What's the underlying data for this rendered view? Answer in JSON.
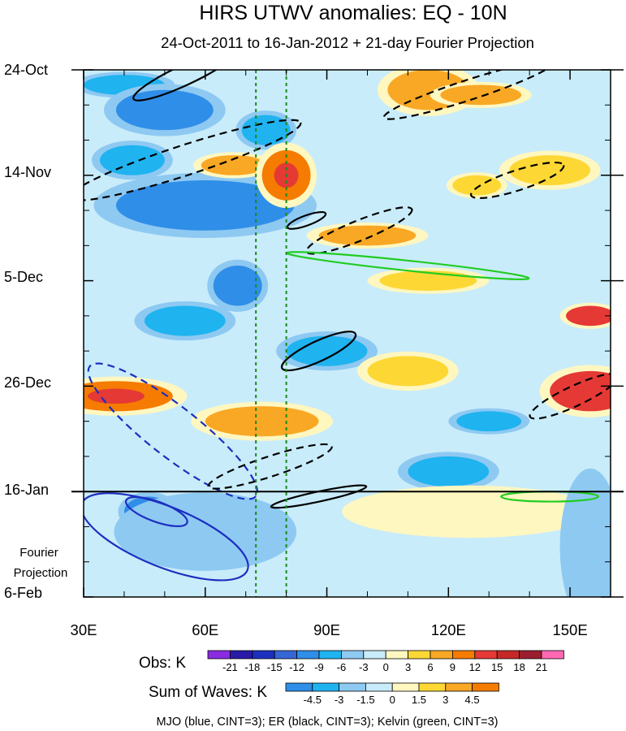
{
  "chart_data": {
    "type": "heatmap",
    "title": "HIRS UTWV anomalies: EQ - 10N",
    "subtitle": "24-Oct-2011 to 16-Jan-2012 + 21-day Fourier Projection",
    "x_ticks": [
      {
        "value": 30,
        "label": "30E"
      },
      {
        "value": 60,
        "label": "60E"
      },
      {
        "value": 90,
        "label": "90E"
      },
      {
        "value": 120,
        "label": "120E"
      },
      {
        "value": 150,
        "label": "150E"
      }
    ],
    "xlim": [
      30,
      160
    ],
    "y_ticks": [
      {
        "value": 0,
        "label": "24-Oct"
      },
      {
        "value": 21,
        "label": "14-Nov"
      },
      {
        "value": 42,
        "label": "5-Dec"
      },
      {
        "value": 63,
        "label": "26-Dec"
      },
      {
        "value": 84,
        "label": "16-Jan"
      },
      {
        "value": 105,
        "label": "6-Feb"
      }
    ],
    "ylim_days": [
      0,
      105
    ],
    "projection_start_day": 84,
    "projection_label_line1": "Fourier",
    "projection_label_line2": "Projection",
    "reference_lines_lon": [
      72.5,
      80
    ],
    "obs_legend": {
      "title": "Obs: K",
      "levels": [
        "-21",
        "-18",
        "-15",
        "-12",
        "-9",
        "-6",
        "-3",
        "0",
        "3",
        "6",
        "9",
        "12",
        "15",
        "18",
        "21"
      ],
      "colors": [
        "#8a2be2",
        "#2a1aa8",
        "#1c2fc0",
        "#3566d6",
        "#2f8ee8",
        "#1fb3f0",
        "#8ec9f2",
        "#c9ecfa",
        "#fff7c0",
        "#fdd835",
        "#f9a825",
        "#f57c00",
        "#e53935",
        "#c62828",
        "#9c1e2e",
        "#ff69b4"
      ]
    },
    "waves_legend": {
      "title": "Sum of Waves: K",
      "levels": [
        "-4.5",
        "-3",
        "-1.5",
        "0",
        "1.5",
        "3",
        "4.5"
      ],
      "colors": [
        "#2f8ee8",
        "#1fb3f0",
        "#8ec9f2",
        "#c9ecfa",
        "#fff7c0",
        "#fdd835",
        "#f9a825",
        "#f57c00"
      ]
    },
    "footer": "MJO (blue, CINT=3); ER (black, CINT=3); Kelvin (green, CINT=3)",
    "field_palette": {
      "neg_strong": "#2f8ee8",
      "neg_mid": "#1fb3f0",
      "neg_weak": "#8ec9f2",
      "neutral_neg": "#c9ecfa",
      "neutral_pos": "#fff7c0",
      "pos_weak": "#fdd835",
      "pos_mid": "#f9a825",
      "pos_strong": "#f57c00",
      "pos_extreme": "#e53935"
    },
    "obs_blobs": [
      {
        "lon": 40,
        "day": 3,
        "rx": 10,
        "ry": 2,
        "v": -6
      },
      {
        "lon": 50,
        "day": 8,
        "rx": 12,
        "ry": 4,
        "v": -7
      },
      {
        "lon": 60,
        "day": 27,
        "rx": 22,
        "ry": 5,
        "v": -9
      },
      {
        "lon": 42,
        "day": 18,
        "rx": 8,
        "ry": 3,
        "v": -5
      },
      {
        "lon": 75,
        "day": 12,
        "rx": 6,
        "ry": 3,
        "v": -4
      },
      {
        "lon": 67,
        "day": 19,
        "rx": 8,
        "ry": 2,
        "v": 5
      },
      {
        "lon": 80,
        "day": 21,
        "rx": 6,
        "ry": 5,
        "v": 9
      },
      {
        "lon": 115,
        "day": 4,
        "rx": 10,
        "ry": 4,
        "v": 6
      },
      {
        "lon": 128,
        "day": 5,
        "rx": 10,
        "ry": 2,
        "v": 5
      },
      {
        "lon": 100,
        "day": 33,
        "rx": 12,
        "ry": 2,
        "v": 5
      },
      {
        "lon": 145,
        "day": 20,
        "rx": 10,
        "ry": 3,
        "v": 4
      },
      {
        "lon": 127,
        "day": 23,
        "rx": 6,
        "ry": 2,
        "v": 4
      },
      {
        "lon": 68,
        "day": 43,
        "rx": 6,
        "ry": 4,
        "v": -7
      },
      {
        "lon": 38,
        "day": 65,
        "rx": 14,
        "ry": 3,
        "v": 7
      },
      {
        "lon": 74,
        "day": 70,
        "rx": 14,
        "ry": 3,
        "v": 6
      },
      {
        "lon": 155,
        "day": 64,
        "rx": 10,
        "ry": 4,
        "v": 12
      },
      {
        "lon": 155,
        "day": 49,
        "rx": 6,
        "ry": 2,
        "v": 10
      },
      {
        "lon": 115,
        "day": 42,
        "rx": 12,
        "ry": 2,
        "v": 4
      },
      {
        "lon": 130,
        "day": 70,
        "rx": 8,
        "ry": 2,
        "v": -4
      },
      {
        "lon": 120,
        "day": 80,
        "rx": 10,
        "ry": 3,
        "v": -4
      },
      {
        "lon": 46,
        "day": 88,
        "rx": 6,
        "ry": 3,
        "v": -8
      },
      {
        "lon": 60,
        "day": 92,
        "rx": 18,
        "ry": 6,
        "v": -3
      },
      {
        "lon": 125,
        "day": 88,
        "rx": 25,
        "ry": 4,
        "v": 2
      },
      {
        "lon": 155,
        "day": 95,
        "rx": 6,
        "ry": 12,
        "v": -2
      },
      {
        "lon": 90,
        "day": 56,
        "rx": 10,
        "ry": 3,
        "v": -5
      },
      {
        "lon": 55,
        "day": 50,
        "rx": 10,
        "ry": 3,
        "v": -4
      },
      {
        "lon": 110,
        "day": 60,
        "rx": 10,
        "ry": 3,
        "v": 3
      }
    ],
    "contours": [
      {
        "wave": "MJO",
        "sign": "negative",
        "color": "#1c2fc0",
        "lon": 52,
        "day": 72,
        "rx": 26,
        "ry": 5,
        "tilt": 38
      },
      {
        "wave": "MJO",
        "sign": "positive",
        "color": "#1c2fc0",
        "lon": 48,
        "day": 88,
        "rx": 8,
        "ry": 2,
        "tilt": 20
      },
      {
        "wave": "MJO",
        "sign": "positive",
        "color": "#1c2fc0",
        "lon": 50,
        "day": 93,
        "rx": 22,
        "ry": 6,
        "tilt": 22
      },
      {
        "wave": "ER",
        "sign": "negative",
        "color": "#000000",
        "lon": 55,
        "day": 18,
        "rx": 30,
        "ry": 3,
        "tilt": -18
      },
      {
        "wave": "ER",
        "sign": "negative",
        "color": "#000000",
        "lon": 125,
        "day": 4,
        "rx": 22,
        "ry": 2,
        "tilt": -18
      },
      {
        "wave": "ER",
        "sign": "negative",
        "color": "#000000",
        "lon": 98,
        "day": 32,
        "rx": 14,
        "ry": 2,
        "tilt": -22
      },
      {
        "wave": "ER",
        "sign": "negative",
        "color": "#000000",
        "lon": 137,
        "day": 22,
        "rx": 12,
        "ry": 2,
        "tilt": -18
      },
      {
        "wave": "ER",
        "sign": "negative",
        "color": "#000000",
        "lon": 76,
        "day": 79,
        "rx": 16,
        "ry": 2,
        "tilt": -18
      },
      {
        "wave": "ER",
        "sign": "negative",
        "color": "#000000",
        "lon": 151,
        "day": 65,
        "rx": 12,
        "ry": 2,
        "tilt": -25
      },
      {
        "wave": "ER",
        "sign": "positive",
        "color": "#000000",
        "lon": 88,
        "day": 56,
        "rx": 10,
        "ry": 2,
        "tilt": -25
      },
      {
        "wave": "ER",
        "sign": "positive",
        "color": "#000000",
        "lon": 88,
        "day": 85,
        "rx": 12,
        "ry": 1,
        "tilt": -12
      },
      {
        "wave": "ER",
        "sign": "positive",
        "color": "#000000",
        "lon": 85,
        "day": 30,
        "rx": 5,
        "ry": 1,
        "tilt": -20
      },
      {
        "wave": "ER",
        "sign": "positive",
        "color": "#000000",
        "lon": 55,
        "day": 1,
        "rx": 14,
        "ry": 2,
        "tilt": -25
      },
      {
        "wave": "Kelvin",
        "sign": "positive",
        "color": "#22cc22",
        "lon": 110,
        "day": 39,
        "rx": 30,
        "ry": 1,
        "tilt": 6
      },
      {
        "wave": "Kelvin",
        "sign": "positive",
        "color": "#22cc22",
        "lon": 145,
        "day": 85,
        "rx": 12,
        "ry": 1,
        "tilt": 0
      }
    ]
  }
}
